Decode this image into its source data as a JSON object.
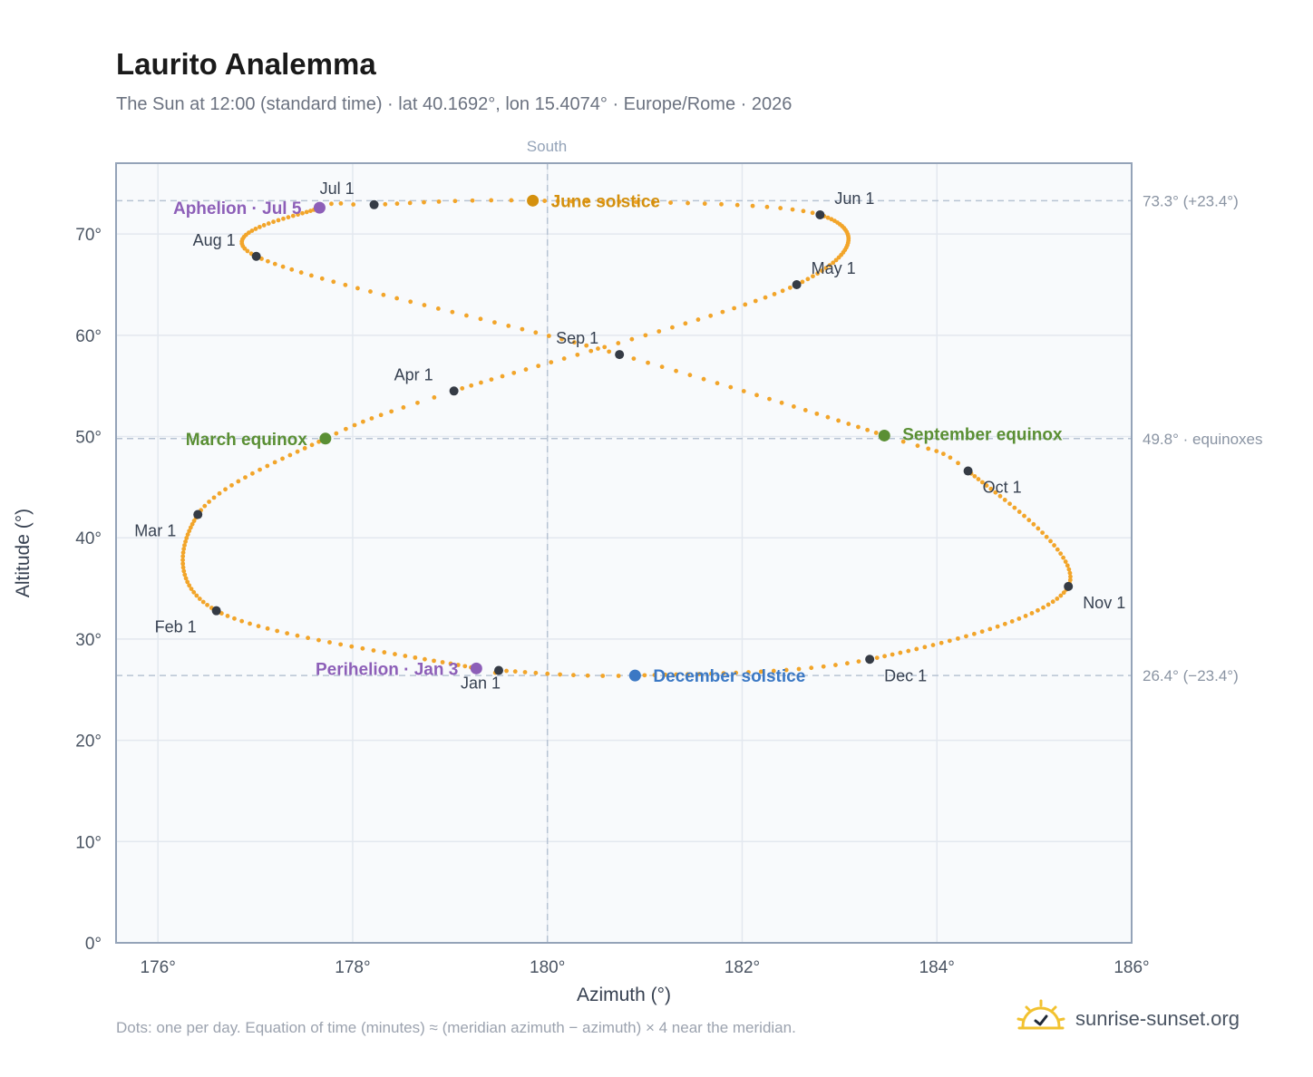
{
  "title": "Laurito Analemma",
  "subtitle": "The Sun at 12:00 (standard time) · lat 40.1692°, lon 15.4074° · Europe/Rome · 2026",
  "footnote": "Dots: one per day. Equation of time (minutes) ≈ (meridian azimuth − azimuth) × 4 near the meridian.",
  "brand": {
    "name": "sunrise-sunset.org",
    "icon": "sun-check-icon"
  },
  "colors": {
    "curve": "#f2a52a",
    "month_dot": "#353b45",
    "solstice_june": "#d4900e",
    "solstice_december": "#3b78c4",
    "equinox": "#5a8f34",
    "apsis": "#8d5fb8",
    "reference_line": "#b7c3d3",
    "plot_bg": "#f8fafc",
    "grid": "#e3e8ef",
    "frame": "#94a3b8"
  },
  "chart_data": {
    "type": "scatter",
    "title": "Laurito Analemma",
    "xlabel": "Azimuth (°)",
    "ylabel": "Altitude (°)",
    "xlim": [
      175.57,
      186.0
    ],
    "ylim": [
      0,
      77
    ],
    "x_ticks": [
      176,
      178,
      180,
      182,
      184,
      186
    ],
    "x_tick_labels": [
      "176°",
      "178°",
      "180°",
      "182°",
      "184°",
      "186°"
    ],
    "y_ticks": [
      0,
      10,
      20,
      30,
      40,
      50,
      60,
      70
    ],
    "y_tick_labels": [
      "0°",
      "10°",
      "20°",
      "30°",
      "40°",
      "50°",
      "60°",
      "70°"
    ],
    "grid": true,
    "meridian": {
      "azimuth": 180,
      "label": "South"
    },
    "reference_lines": [
      {
        "altitude": 73.3,
        "label": "73.3° (+23.4°)"
      },
      {
        "altitude": 49.8,
        "label": "49.8° · equinoxes"
      },
      {
        "altitude": 26.4,
        "label": "26.4° (−23.4°)"
      }
    ],
    "month_points": [
      {
        "label": "Jan 1",
        "azimuth": 179.5,
        "altitude": 26.9
      },
      {
        "label": "Feb 1",
        "azimuth": 176.6,
        "altitude": 32.8
      },
      {
        "label": "Mar 1",
        "azimuth": 176.41,
        "altitude": 42.3
      },
      {
        "label": "Apr 1",
        "azimuth": 179.04,
        "altitude": 54.5
      },
      {
        "label": "May 1",
        "azimuth": 182.56,
        "altitude": 65.0
      },
      {
        "label": "Jun 1",
        "azimuth": 182.8,
        "altitude": 71.9
      },
      {
        "label": "Jul 1",
        "azimuth": 178.22,
        "altitude": 72.9
      },
      {
        "label": "Aug 1",
        "azimuth": 177.01,
        "altitude": 67.8
      },
      {
        "label": "Sep 1",
        "azimuth": 180.74,
        "altitude": 58.1
      },
      {
        "label": "Oct 1",
        "azimuth": 184.32,
        "altitude": 46.6
      },
      {
        "label": "Nov 1",
        "azimuth": 185.35,
        "altitude": 35.2
      },
      {
        "label": "Dec 1",
        "azimuth": 183.31,
        "altitude": 28.0
      }
    ],
    "events": [
      {
        "label": "Perihelion · Jan 3",
        "azimuth": 179.27,
        "altitude": 27.1,
        "kind": "apsis"
      },
      {
        "label": "March equinox",
        "azimuth": 177.72,
        "altitude": 49.8,
        "kind": "equinox"
      },
      {
        "label": "June solstice",
        "azimuth": 179.85,
        "altitude": 73.3,
        "kind": "june"
      },
      {
        "label": "Aphelion · Jul 5",
        "azimuth": 177.66,
        "altitude": 72.6,
        "kind": "apsis"
      },
      {
        "label": "September equinox",
        "azimuth": 183.46,
        "altitude": 50.1,
        "kind": "equinox"
      },
      {
        "label": "December solstice",
        "azimuth": 180.9,
        "altitude": 26.4,
        "kind": "december"
      }
    ]
  }
}
